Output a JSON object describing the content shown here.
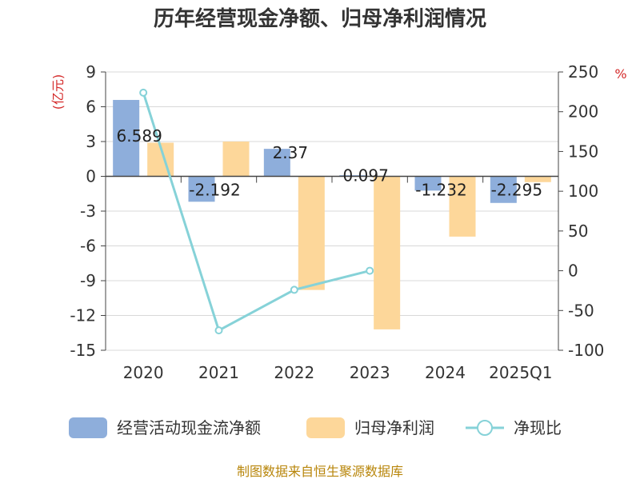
{
  "chart_data": {
    "type": "bar",
    "title": "历年经营现金净额、归母净利润情况",
    "categories": [
      "2020",
      "2021",
      "2022",
      "2023",
      "2024",
      "2025Q1"
    ],
    "left_axis": {
      "unit": "(亿元)",
      "ticks": [
        "9",
        "6",
        "3",
        "0",
        "-3",
        "-6",
        "-9",
        "-12",
        "-15"
      ],
      "ylim": [
        -15,
        9
      ]
    },
    "right_axis": {
      "unit": "%",
      "ticks": [
        "250",
        "200",
        "150",
        "100",
        "50",
        "0",
        "-50",
        "-100"
      ],
      "ylim": [
        -100,
        250
      ]
    },
    "series": [
      {
        "name": "经营活动现金流净额",
        "type": "bar",
        "axis": "left",
        "color": "#8eaedb",
        "values": [
          6.589,
          -2.192,
          2.37,
          0.097,
          -1.232,
          -2.295
        ],
        "labels": [
          "6.589",
          "-2.192",
          "2.37",
          "0.097",
          "-1.232",
          "-2.295"
        ]
      },
      {
        "name": "归母净利润",
        "type": "bar",
        "axis": "left",
        "color": "#fdd79a",
        "values": [
          2.9,
          3.0,
          -9.8,
          -13.2,
          -5.2,
          -0.5
        ]
      },
      {
        "name": "净现比",
        "type": "line",
        "axis": "right",
        "color": "#86d2d8",
        "values": [
          224,
          -75,
          -24,
          0,
          null,
          null
        ]
      }
    ],
    "grid": true,
    "legend_position": "bottom"
  },
  "footer": {
    "source": "制图数据来自恒生聚源数据库"
  }
}
